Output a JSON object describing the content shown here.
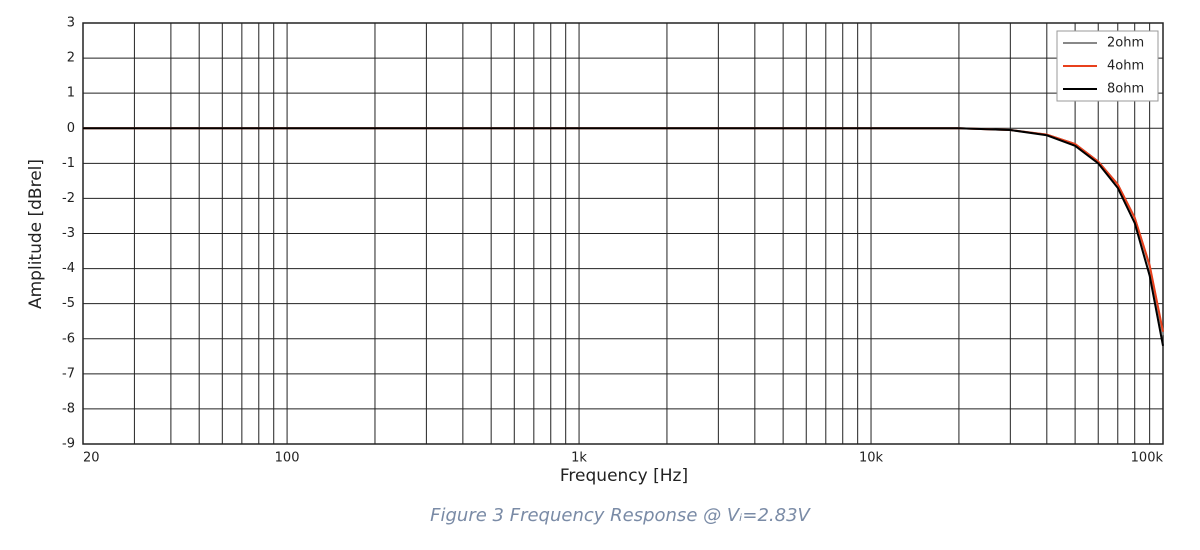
{
  "chart_data": {
    "type": "line",
    "xlabel": "Frequency [Hz]",
    "ylabel": "Amplitude [dBrel]",
    "caption": "Figure 3 Frequency Response @ Vᵢ=2.83V",
    "xscale": "log",
    "x": [
      20,
      100,
      1000,
      10000,
      20000,
      30000,
      40000,
      50000,
      60000,
      70000,
      80000,
      90000,
      100000
    ],
    "series": [
      {
        "name": "2ohm",
        "color": "#888888",
        "values": [
          0,
          0,
          0,
          0,
          0,
          -0.05,
          -0.18,
          -0.45,
          -0.95,
          -1.6,
          -2.55,
          -3.95,
          -5.9
        ]
      },
      {
        "name": "4ohm",
        "color": "#e8401c",
        "values": [
          0,
          0,
          0,
          0,
          0,
          -0.05,
          -0.18,
          -0.45,
          -0.95,
          -1.6,
          -2.55,
          -3.9,
          -5.8
        ]
      },
      {
        "name": "8ohm",
        "color": "#000000",
        "values": [
          0,
          0,
          0,
          0,
          0,
          -0.05,
          -0.2,
          -0.5,
          -1.0,
          -1.7,
          -2.7,
          -4.2,
          -6.2
        ]
      }
    ],
    "xlim": [
      20,
      100000
    ],
    "xticks": [
      20,
      100,
      {
        "value": 1000,
        "label": "1k"
      },
      {
        "value": 10000,
        "label": "10k"
      },
      {
        "value": 100000,
        "label": "100k"
      }
    ],
    "xminorticks": [
      30,
      40,
      50,
      60,
      70,
      80,
      90,
      200,
      300,
      400,
      500,
      600,
      700,
      800,
      900,
      2000,
      3000,
      4000,
      5000,
      6000,
      7000,
      8000,
      9000,
      20000,
      30000,
      40000,
      50000,
      60000,
      70000,
      80000,
      90000
    ],
    "ylim": [
      -9,
      3
    ],
    "yticks": [
      -9,
      -8,
      -7,
      -6,
      -5,
      -4,
      -3,
      -2,
      -1,
      0,
      1,
      2,
      3
    ],
    "grid": true,
    "legend": "upper right"
  }
}
